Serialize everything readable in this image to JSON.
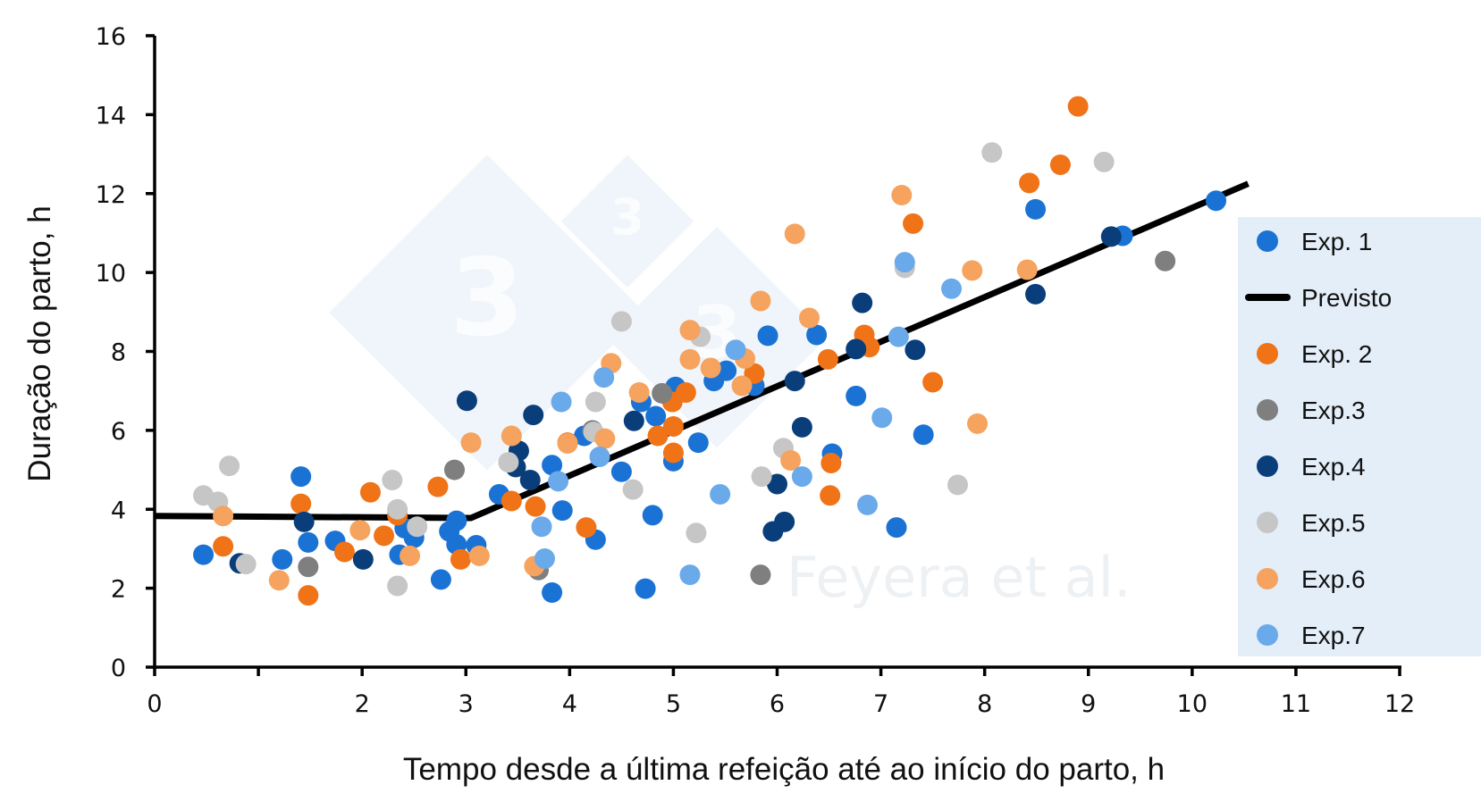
{
  "chart_data": {
    "type": "scatter",
    "xlabel": "Tempo desde a última refeição até ao início do parto, h",
    "ylabel": "Duração do parto, h",
    "xlim": [
      0,
      12
    ],
    "ylim": [
      0,
      16
    ],
    "x_ticks": [
      0,
      1,
      2,
      3,
      4,
      5,
      6,
      7,
      8,
      9,
      10,
      11,
      12
    ],
    "x_tick_labels": [
      {
        "value": 0,
        "label": "0"
      },
      {
        "value": 2,
        "label": "2"
      },
      {
        "value": 3,
        "label": "3"
      },
      {
        "value": 4,
        "label": "4"
      },
      {
        "value": 5,
        "label": "5"
      },
      {
        "value": 6,
        "label": "6"
      },
      {
        "value": 7,
        "label": "7"
      },
      {
        "value": 8,
        "label": "8"
      },
      {
        "value": 9,
        "label": "9"
      },
      {
        "value": 10,
        "label": "10"
      },
      {
        "value": 11,
        "label": "11"
      },
      {
        "value": 12,
        "label": "12"
      }
    ],
    "y_ticks": [
      0,
      2,
      4,
      6,
      8,
      10,
      12,
      14,
      16
    ],
    "y_tick_labels": [
      "0",
      "2",
      "4",
      "6",
      "8",
      "10",
      "12",
      "14",
      "16"
    ],
    "grid": false,
    "legend_placement": "right",
    "watermark_text": "Feyera et al.",
    "watermark_logo": "3tres3",
    "line": {
      "name": "Previsto",
      "color": "#000000",
      "points": [
        [
          0,
          3.83
        ],
        [
          3.05,
          3.78
        ],
        [
          10.54,
          12.25
        ]
      ]
    },
    "series": [
      {
        "name": "Exp. 1",
        "color": "#1a73d4",
        "points": [
          [
            0.47,
            2.85
          ],
          [
            1.41,
            4.83
          ],
          [
            1.48,
            3.16
          ],
          [
            1.23,
            2.73
          ],
          [
            1.74,
            3.2
          ],
          [
            2.36,
            2.85
          ],
          [
            2.41,
            3.52
          ],
          [
            2.5,
            3.28
          ],
          [
            2.76,
            2.22
          ],
          [
            2.84,
            3.44
          ],
          [
            2.91,
            3.71
          ],
          [
            2.91,
            3.11
          ],
          [
            3.1,
            3.09
          ],
          [
            3.32,
            4.38
          ],
          [
            3.83,
            1.89
          ],
          [
            3.83,
            5.12
          ],
          [
            3.93,
            3.97
          ],
          [
            4.14,
            5.86
          ],
          [
            4.25,
            3.23
          ],
          [
            4.5,
            4.95
          ],
          [
            4.69,
            6.72
          ],
          [
            4.73,
            1.99
          ],
          [
            4.8,
            3.85
          ],
          [
            4.83,
            6.36
          ],
          [
            5.0,
            5.22
          ],
          [
            5.02,
            7.1
          ],
          [
            5.24,
            5.69
          ],
          [
            5.39,
            7.25
          ],
          [
            5.51,
            7.51
          ],
          [
            5.78,
            7.13
          ],
          [
            5.91,
            8.4
          ],
          [
            6.38,
            8.42
          ],
          [
            6.53,
            5.41
          ],
          [
            6.76,
            6.87
          ],
          [
            7.15,
            3.54
          ],
          [
            7.41,
            5.89
          ],
          [
            8.49,
            11.6
          ],
          [
            9.33,
            10.93
          ],
          [
            10.23,
            11.82
          ]
        ]
      },
      {
        "name": "Exp. 2",
        "color": "#f07318",
        "points": [
          [
            0.66,
            3.06
          ],
          [
            1.41,
            4.14
          ],
          [
            1.48,
            1.82
          ],
          [
            1.83,
            2.92
          ],
          [
            2.08,
            4.43
          ],
          [
            2.21,
            3.33
          ],
          [
            2.34,
            3.85
          ],
          [
            2.73,
            4.57
          ],
          [
            2.95,
            2.73
          ],
          [
            3.44,
            4.21
          ],
          [
            3.67,
            4.07
          ],
          [
            3.98,
            5.69
          ],
          [
            4.16,
            3.54
          ],
          [
            4.85,
            5.86
          ],
          [
            4.99,
            6.72
          ],
          [
            5.0,
            6.1
          ],
          [
            5.0,
            5.43
          ],
          [
            5.12,
            6.96
          ],
          [
            5.78,
            7.44
          ],
          [
            6.49,
            7.8
          ],
          [
            6.51,
            4.35
          ],
          [
            6.52,
            5.17
          ],
          [
            6.84,
            8.42
          ],
          [
            6.89,
            8.11
          ],
          [
            7.31,
            11.24
          ],
          [
            7.5,
            7.22
          ],
          [
            8.43,
            12.27
          ],
          [
            8.73,
            12.73
          ],
          [
            8.9,
            14.21
          ]
        ]
      },
      {
        "name": "Exp.3",
        "color": "#7f7f7f",
        "points": [
          [
            1.48,
            2.54
          ],
          [
            2.89,
            5.0
          ],
          [
            3.7,
            2.46
          ],
          [
            4.22,
            6.0
          ],
          [
            4.89,
            6.94
          ],
          [
            5.84,
            2.34
          ],
          [
            9.74,
            10.29
          ]
        ]
      },
      {
        "name": "Exp.4",
        "color": "#0a3e7a",
        "points": [
          [
            0.82,
            2.63
          ],
          [
            1.44,
            3.68
          ],
          [
            2.01,
            2.73
          ],
          [
            3.01,
            6.75
          ],
          [
            3.51,
            5.48
          ],
          [
            3.48,
            5.07
          ],
          [
            3.62,
            4.74
          ],
          [
            3.65,
            6.39
          ],
          [
            4.62,
            6.24
          ],
          [
            5.96,
            3.44
          ],
          [
            6.0,
            4.64
          ],
          [
            6.07,
            3.68
          ],
          [
            6.17,
            7.25
          ],
          [
            6.24,
            6.08
          ],
          [
            6.76,
            8.06
          ],
          [
            6.82,
            9.23
          ],
          [
            7.33,
            8.04
          ],
          [
            8.49,
            9.45
          ],
          [
            9.22,
            10.91
          ]
        ]
      },
      {
        "name": "Exp.5",
        "color": "#c6c6c6",
        "points": [
          [
            0.47,
            4.35
          ],
          [
            0.61,
            4.19
          ],
          [
            0.72,
            5.1
          ],
          [
            0.88,
            2.61
          ],
          [
            2.29,
            4.74
          ],
          [
            2.34,
            2.06
          ],
          [
            2.34,
            4.0
          ],
          [
            2.53,
            3.56
          ],
          [
            3.41,
            5.19
          ],
          [
            4.25,
            6.72
          ],
          [
            4.23,
            5.96
          ],
          [
            4.5,
            8.76
          ],
          [
            4.61,
            4.5
          ],
          [
            5.26,
            8.37
          ],
          [
            5.22,
            3.4
          ],
          [
            5.85,
            4.83
          ],
          [
            6.06,
            5.55
          ],
          [
            7.23,
            10.12
          ],
          [
            7.74,
            4.62
          ],
          [
            8.07,
            13.04
          ],
          [
            9.15,
            12.8
          ]
        ]
      },
      {
        "name": "Exp.6",
        "color": "#f5a35f",
        "points": [
          [
            0.66,
            3.83
          ],
          [
            1.2,
            2.2
          ],
          [
            1.98,
            3.47
          ],
          [
            2.46,
            2.82
          ],
          [
            3.05,
            5.69
          ],
          [
            3.13,
            2.82
          ],
          [
            3.44,
            5.86
          ],
          [
            3.66,
            2.56
          ],
          [
            3.98,
            5.67
          ],
          [
            4.34,
            5.79
          ],
          [
            4.4,
            7.7
          ],
          [
            4.67,
            6.96
          ],
          [
            5.16,
            8.54
          ],
          [
            5.16,
            7.8
          ],
          [
            5.36,
            7.58
          ],
          [
            5.66,
            7.13
          ],
          [
            5.69,
            7.82
          ],
          [
            5.84,
            9.28
          ],
          [
            6.13,
            5.24
          ],
          [
            6.17,
            10.98
          ],
          [
            6.31,
            8.85
          ],
          [
            7.2,
            11.96
          ],
          [
            7.88,
            10.05
          ],
          [
            7.93,
            6.17
          ],
          [
            8.41,
            10.07
          ]
        ]
      },
      {
        "name": "Exp.7",
        "color": "#6aaaea",
        "points": [
          [
            3.73,
            3.56
          ],
          [
            3.76,
            2.75
          ],
          [
            3.89,
            4.71
          ],
          [
            3.92,
            6.72
          ],
          [
            4.29,
            5.33
          ],
          [
            4.33,
            7.34
          ],
          [
            5.16,
            2.34
          ],
          [
            5.45,
            4.38
          ],
          [
            5.6,
            8.04
          ],
          [
            6.24,
            4.83
          ],
          [
            6.87,
            4.11
          ],
          [
            7.01,
            6.32
          ],
          [
            7.17,
            8.37
          ],
          [
            7.23,
            10.26
          ],
          [
            7.68,
            9.59
          ]
        ]
      }
    ],
    "legend_order": [
      "Exp. 1",
      "Previsto",
      "Exp. 2",
      "Exp.3",
      "Exp.4",
      "Exp.5",
      "Exp.6",
      "Exp.7"
    ],
    "legend_background": "#e3eef9"
  }
}
